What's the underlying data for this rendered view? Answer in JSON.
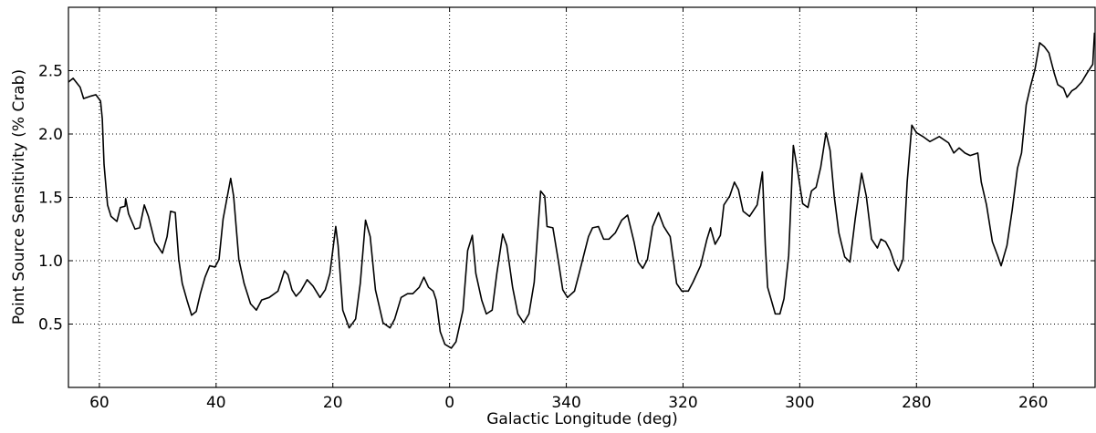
{
  "chart_data": {
    "type": "line",
    "x_label": "Galactic Longitude (deg)",
    "y_label": "Point Source Sensitivity (% Crab)",
    "color": "#000000",
    "grid": true,
    "xlim": [
      65.3,
      -110.6
    ],
    "ylim": [
      0,
      3
    ],
    "xticks": [
      60,
      40,
      20,
      0,
      {
        "value": -20,
        "label": "340"
      },
      {
        "value": -40,
        "label": "320"
      },
      {
        "value": -60,
        "label": "300"
      },
      {
        "value": -80,
        "label": "280"
      },
      {
        "value": -100,
        "label": "260"
      }
    ],
    "yticks": [
      0.5,
      {
        "value": 1,
        "label": "1.0"
      },
      1.5,
      {
        "value": 2,
        "label": "2.0"
      },
      2.5
    ],
    "x": [
      65.3,
      64.5,
      63.3,
      62.7,
      61.4,
      60.6,
      59.8,
      59.5,
      59.2,
      58.6,
      58.0,
      57.0,
      56.4,
      55.6,
      55.5,
      55.0,
      53.9,
      53.1,
      52.3,
      51.6,
      50.5,
      49.2,
      48.4,
      47.8,
      47.0,
      46.4,
      45.8,
      45.0,
      44.2,
      43.4,
      42.7,
      41.9,
      41.1,
      40.2,
      39.5,
      38.8,
      37.5,
      37.0,
      36.1,
      35.2,
      34.1,
      33.1,
      32.2,
      30.9,
      29.4,
      28.3,
      27.7,
      27.0,
      26.3,
      25.5,
      24.4,
      23.4,
      22.2,
      21.3,
      20.5,
      19.5,
      19.1,
      18.3,
      17.2,
      16.1,
      15.3,
      14.4,
      13.6,
      12.7,
      11.4,
      10.2,
      9.4,
      8.3,
      7.2,
      6.3,
      5.2,
      4.4,
      3.6,
      2.8,
      2.3,
      1.6,
      0.8,
      -0.3,
      -1.1,
      -2.3,
      -3.1,
      -3.9,
      -4.5,
      -5.5,
      -6.3,
      -7.3,
      -8.1,
      -9.1,
      -9.8,
      -10.8,
      -11.7,
      -12.7,
      -13.6,
      -14.5,
      -15.6,
      -16.3,
      -16.7,
      -17.7,
      -18.6,
      -19.4,
      -20.2,
      -21.4,
      -22.2,
      -23.8,
      -24.5,
      -25.5,
      -26.4,
      -27.3,
      -28.4,
      -29.5,
      -30.5,
      -31.6,
      -32.3,
      -33.1,
      -33.9,
      -34.8,
      -35.8,
      -36.7,
      -37.8,
      -38.9,
      -39.8,
      -40.9,
      -41.7,
      -43.0,
      -44.1,
      -44.7,
      -45.5,
      -46.4,
      -47.0,
      -48.0,
      -48.8,
      -49.5,
      -50.3,
      -51.4,
      -52.7,
      -53.6,
      -54.1,
      -54.5,
      -55.8,
      -56.6,
      -57.3,
      -58.1,
      -58.9,
      -59.7,
      -60.5,
      -61.4,
      -62.0,
      -62.8,
      -63.6,
      -64.5,
      -65.2,
      -65.9,
      -66.7,
      -67.7,
      -68.6,
      -69.5,
      -70.6,
      -71.4,
      -72.3,
      -73.3,
      -73.9,
      -74.7,
      -75.5,
      -76.3,
      -76.9,
      -77.7,
      -78.4,
      -79.2,
      -80.0,
      -81.1,
      -82.3,
      -83.9,
      -85.5,
      -86.4,
      -87.3,
      -88.3,
      -89.2,
      -90.5,
      -91.1,
      -92.0,
      -93.0,
      -93.9,
      -94.5,
      -95.5,
      -96.4,
      -97.3,
      -98.0,
      -98.8,
      -99.5,
      -100.3,
      -101.1,
      -101.9,
      -102.7,
      -103.6,
      -104.2,
      -105.2,
      -105.8,
      -106.6,
      -107.3,
      -108.3,
      -109.2,
      -110.2,
      -110.5
    ],
    "values": [
      2.41,
      2.44,
      2.37,
      2.28,
      2.3,
      2.31,
      2.26,
      2.12,
      1.76,
      1.44,
      1.35,
      1.31,
      1.42,
      1.43,
      1.49,
      1.37,
      1.25,
      1.26,
      1.44,
      1.35,
      1.15,
      1.06,
      1.19,
      1.39,
      1.38,
      1.01,
      0.82,
      0.69,
      0.57,
      0.6,
      0.74,
      0.87,
      0.96,
      0.95,
      1.01,
      1.33,
      1.65,
      1.51,
      1.01,
      0.82,
      0.66,
      0.61,
      0.69,
      0.71,
      0.76,
      0.92,
      0.89,
      0.77,
      0.72,
      0.76,
      0.85,
      0.8,
      0.71,
      0.77,
      0.9,
      1.27,
      1.12,
      0.61,
      0.47,
      0.54,
      0.82,
      1.32,
      1.19,
      0.77,
      0.51,
      0.47,
      0.54,
      0.71,
      0.74,
      0.74,
      0.79,
      0.87,
      0.79,
      0.76,
      0.69,
      0.44,
      0.34,
      0.31,
      0.36,
      0.61,
      1.08,
      1.2,
      0.9,
      0.69,
      0.58,
      0.61,
      0.9,
      1.21,
      1.12,
      0.79,
      0.58,
      0.51,
      0.58,
      0.83,
      1.55,
      1.51,
      1.27,
      1.26,
      1.01,
      0.77,
      0.71,
      0.76,
      0.9,
      1.19,
      1.26,
      1.27,
      1.17,
      1.17,
      1.22,
      1.32,
      1.36,
      1.15,
      0.99,
      0.94,
      1.01,
      1.27,
      1.38,
      1.27,
      1.19,
      0.82,
      0.76,
      0.76,
      0.83,
      0.96,
      1.17,
      1.26,
      1.13,
      1.2,
      1.44,
      1.51,
      1.62,
      1.56,
      1.39,
      1.35,
      1.44,
      1.7,
      1.12,
      0.79,
      0.58,
      0.58,
      0.7,
      1.04,
      1.91,
      1.69,
      1.45,
      1.42,
      1.55,
      1.58,
      1.74,
      2.01,
      1.87,
      1.51,
      1.22,
      1.03,
      0.99,
      1.33,
      1.69,
      1.51,
      1.17,
      1.1,
      1.17,
      1.15,
      1.08,
      0.97,
      0.92,
      1.01,
      1.62,
      2.07,
      2.01,
      1.98,
      1.94,
      1.98,
      1.93,
      1.85,
      1.89,
      1.85,
      1.83,
      1.85,
      1.62,
      1.44,
      1.15,
      1.04,
      0.96,
      1.12,
      1.4,
      1.73,
      1.85,
      2.23,
      2.37,
      2.51,
      2.72,
      2.69,
      2.64,
      2.48,
      2.39,
      2.36,
      2.29,
      2.34,
      2.36,
      2.41,
      2.48,
      2.55,
      2.8
    ]
  }
}
